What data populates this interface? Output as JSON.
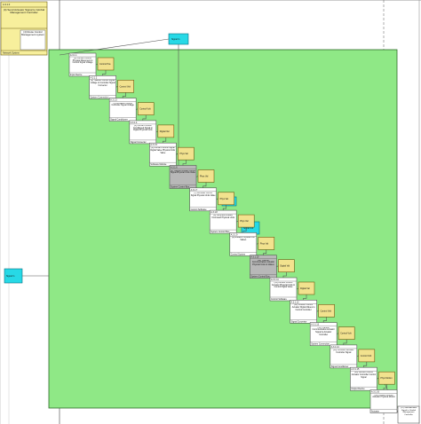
{
  "diagram": {
    "header_top": "A.3.1",
    "top_left_block": {
      "id": "A.3.1.0",
      "title": "(4) Send Actuator Signal to Gimbal Management Controller",
      "sub_title": "(4) Route Control Management system",
      "footer": "Network System"
    },
    "inputs": [
      {
        "id": "in1",
        "label": "Signal In"
      },
      {
        "id": "in2",
        "label": "Signal In"
      }
    ],
    "functions": [
      {
        "id": "A.3.1.1",
        "text": "(1) Convert Control Physical Movement to Control Signal Voltage",
        "footer": "Input Device"
      },
      {
        "id": "A.3.1.2",
        "text": "(2) Transfer Control Signal Voltage to Controller Signal Converter",
        "footer": "System Connection"
      },
      {
        "id": "A.3.1.3",
        "text": "(3) Condition Control Controller Signal Voltage",
        "footer": "Signal Conditioner"
      },
      {
        "id": "A.3.1.4",
        "text": "(4) Convert Control Conditioned Signal to Digital Physical Units",
        "footer": "Signal Converter"
      },
      {
        "id": "A.3.1.5",
        "text": "(5) Convert Control Signal Digital Value Physical Units Value",
        "footer": "Software Module"
      },
      {
        "id": "A.3.1.6",
        "text": "(6) Transfer Routed Control Signal Physical Units Value",
        "footer": "System Control Bus"
      },
      {
        "id": "A.3.1.7",
        "text": "(7) Generate Control Signal Physical Units Value",
        "footer": "Control Software"
      },
      {
        "id": "A.3.1.8",
        "text": "(8) Compute Actuator Command Physical Units",
        "footer": "System Control Bus"
      },
      {
        "id": "A.3.1.9",
        "text": "(9) Actuator Physical Unit Values",
        "footer": "Control System"
      },
      {
        "id": "A.3.1.10",
        "text": "(10) Transfer Communication Actuator Physical Units to Values",
        "footer": "System Control Bus"
      },
      {
        "id": "A.3.1.11",
        "text": "(11) Convert Control Actuator Physical Units to Control Digital Value",
        "footer": "Control Software"
      },
      {
        "id": "A.3.1.12",
        "text": "(12) Convert Control Actuator Digital Values to Control Controller",
        "footer": "Signal Converter"
      },
      {
        "id": "A.3.1.13",
        "text": "(13) Transfer Communication Actuator Signal to Actuator Controller",
        "footer": "System Connection"
      },
      {
        "id": "A.3.1.14",
        "text": "(14) Condition Actuator Controller Signal",
        "footer": "Signal Conditioner"
      },
      {
        "id": "A.3.1.15",
        "text": "(15) Convert Control Actuator Controller Control Signal",
        "footer": "Output Device"
      },
      {
        "id": "A.3.1.16",
        "text": "(16) Convert Control Actuator Physical Motion",
        "footer": "Actuator"
      }
    ],
    "flows": [
      "Control Pos",
      "Control Volt",
      "Control Volt",
      "Digital Val",
      "Phys Val",
      "Phys Val",
      "Phys Val",
      "Phys Val",
      "Phys Val",
      "Digital Val",
      "Digital Val",
      "Control Volt",
      "Control Volt",
      "Control Volt",
      "Phys Motion"
    ],
    "outputs": [
      {
        "id": "out1",
        "label": "Signal Out"
      },
      {
        "id": "out2",
        "label": "Signal Out"
      }
    ],
    "bottom_right_block": {
      "id": "A.3.1.17",
      "title": "(17) Send Actuator Signal to Gimbal Management Controller",
      "footer": "Network System"
    },
    "colors": {
      "region": "#8fe886",
      "region_border": "#2f6a2a",
      "function_box": "#ffffff",
      "flow_box": "#f2e28e",
      "cyan_box": "#27d9e6",
      "gray_box": "#b8b8b8",
      "top_block": "#f7ef9c"
    }
  }
}
